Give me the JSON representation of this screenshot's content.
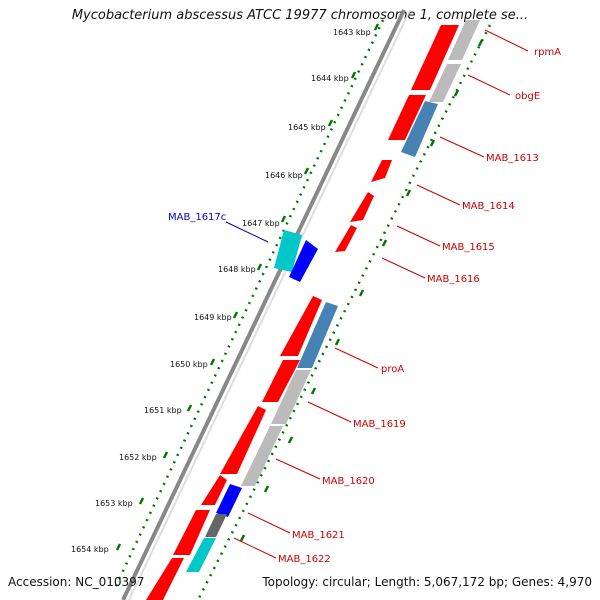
{
  "title": "Mycobacterium abscessus ATCC 19977 chromosome 1, complete se...",
  "footer": {
    "accession": "Accession: NC_010397",
    "topology": "Topology: circular; Length: 5,067,172 bp; Genes: 4,970"
  },
  "kbp_labels": [
    "1643 kbp",
    "1644 kbp",
    "1645 kbp",
    "1646 kbp",
    "1647 kbp",
    "1648 kbp",
    "1649 kbp",
    "1650 kbp",
    "1651 kbp",
    "1652 kbp",
    "1653 kbp",
    "1654 kbp"
  ],
  "gene_labels": [
    {
      "name": "rpmA",
      "color": "#cc0000"
    },
    {
      "name": "obgE",
      "color": "#cc0000"
    },
    {
      "name": "MAB_1613",
      "color": "#cc0000"
    },
    {
      "name": "MAB_1614",
      "color": "#cc0000"
    },
    {
      "name": "MAB_1615",
      "color": "#cc0000"
    },
    {
      "name": "MAB_1616",
      "color": "#cc0000"
    },
    {
      "name": "MAB_1617c",
      "color": "#0000cc"
    },
    {
      "name": "proA",
      "color": "#cc0000"
    },
    {
      "name": "MAB_1619",
      "color": "#cc0000"
    },
    {
      "name": "MAB_1620",
      "color": "#cc0000"
    },
    {
      "name": "MAB_1621",
      "color": "#cc0000"
    },
    {
      "name": "MAB_1622",
      "color": "#cc0000"
    }
  ],
  "colors": {
    "cds_forward": "#ff0000",
    "cds_reverse": "#0000ff",
    "orf": "#4682b4",
    "rrna": "#00c8c8",
    "gc_content": "#bbbbbb",
    "backbone": "#888888",
    "ticks": "#007700"
  }
}
